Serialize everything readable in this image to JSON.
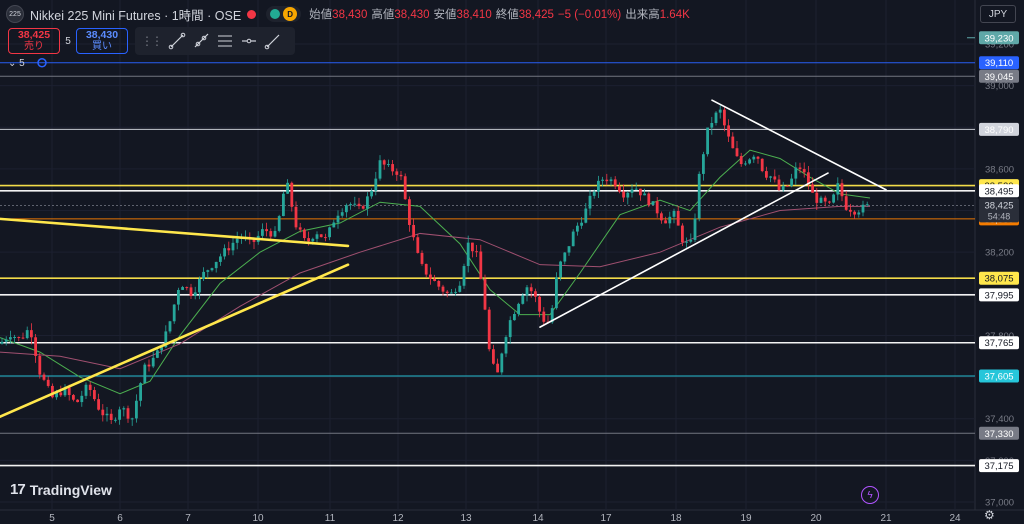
{
  "header": {
    "symbol_logo": "225",
    "title": "Nikkei 225 Mini Futures · 1時間 · OSE",
    "status_badge": "D",
    "ohlc": [
      {
        "label": "始値",
        "value": "38,430"
      },
      {
        "label": "高値",
        "value": "38,430"
      },
      {
        "label": "安値",
        "value": "38,410"
      },
      {
        "label": "終値",
        "value": "38,425"
      },
      {
        "label": "",
        "value": "−5 (−0.01%)"
      },
      {
        "label": "出来高",
        "value": "1.64K"
      }
    ]
  },
  "trade": {
    "sell_price": "38,425",
    "sell_label": "売り",
    "spread": "5",
    "buy_price": "38,430",
    "buy_label": "買い"
  },
  "collapse_label": "5",
  "currency": "JPY",
  "watermark": "TradingView",
  "colors": {
    "background": "#131722",
    "up": "#26a69a",
    "down": "#f23645",
    "ma_fast": "#4caf50",
    "ma_slow": "#a05070",
    "trend_yellow": "#ffe74c"
  },
  "chart_data": {
    "type": "candlestick",
    "ylim": [
      37000,
      39300
    ],
    "x_tick_labels": [
      "5",
      "6",
      "7",
      "10",
      "11",
      "12",
      "13",
      "14",
      "17",
      "18",
      "19",
      "20",
      "21",
      "24"
    ],
    "y_tick_labels": [
      39200,
      39000,
      38800,
      38600,
      38400,
      38200,
      38000,
      37800,
      37600,
      37400,
      37200,
      37000
    ],
    "last_price": 38425,
    "countdown": "54:48",
    "horizontal_levels": [
      {
        "value": 39230,
        "label": "39,230",
        "color": "#5fa8a8",
        "style": "partial"
      },
      {
        "value": 39110,
        "label": "39,110",
        "color": "#2962ff"
      },
      {
        "value": 39045,
        "label": "39,045",
        "color": "#787b86"
      },
      {
        "value": 38790,
        "label": "38,790",
        "color": "#d1d4dc"
      },
      {
        "value": 38520,
        "label": "38,520",
        "color": "#ffe74c"
      },
      {
        "value": 38495,
        "label": "38,495",
        "color": "#ffffff"
      },
      {
        "value": 38360,
        "label": "38,360",
        "color": "#f57c00"
      },
      {
        "value": 38075,
        "label": "38,075",
        "color": "#ffe74c"
      },
      {
        "value": 37995,
        "label": "37,995",
        "color": "#ffffff"
      },
      {
        "value": 37765,
        "label": "37,765",
        "color": "#ffffff"
      },
      {
        "value": 37605,
        "label": "37,605",
        "color": "#26c6da"
      },
      {
        "value": 37330,
        "label": "37,330",
        "color": "#787b86"
      },
      {
        "value": 37175,
        "label": "37,175",
        "color": "#ffffff"
      }
    ],
    "close_path": [
      [
        0,
        37760
      ],
      [
        10,
        37810
      ],
      [
        20,
        37780
      ],
      [
        30,
        37840
      ],
      [
        40,
        37620
      ],
      [
        52,
        37500
      ],
      [
        64,
        37540
      ],
      [
        76,
        37470
      ],
      [
        88,
        37560
      ],
      [
        100,
        37440
      ],
      [
        112,
        37380
      ],
      [
        120,
        37460
      ],
      [
        132,
        37400
      ],
      [
        144,
        37640
      ],
      [
        156,
        37700
      ],
      [
        168,
        37830
      ],
      [
        180,
        38060
      ],
      [
        192,
        38000
      ],
      [
        204,
        38100
      ],
      [
        216,
        38160
      ],
      [
        228,
        38220
      ],
      [
        240,
        38280
      ],
      [
        252,
        38240
      ],
      [
        264,
        38310
      ],
      [
        276,
        38280
      ],
      [
        286,
        38550
      ],
      [
        296,
        38330
      ],
      [
        306,
        38240
      ],
      [
        316,
        38300
      ],
      [
        326,
        38260
      ],
      [
        336,
        38380
      ],
      [
        348,
        38440
      ],
      [
        360,
        38400
      ],
      [
        370,
        38480
      ],
      [
        380,
        38630
      ],
      [
        390,
        38600
      ],
      [
        400,
        38580
      ],
      [
        410,
        38330
      ],
      [
        420,
        38140
      ],
      [
        430,
        38080
      ],
      [
        440,
        38030
      ],
      [
        450,
        37990
      ],
      [
        460,
        38060
      ],
      [
        468,
        38240
      ],
      [
        476,
        38200
      ],
      [
        484,
        37980
      ],
      [
        490,
        37690
      ],
      [
        497,
        37600
      ],
      [
        504,
        37780
      ],
      [
        510,
        37870
      ],
      [
        518,
        37960
      ],
      [
        526,
        38040
      ],
      [
        534,
        38000
      ],
      [
        542,
        37880
      ],
      [
        550,
        37860
      ],
      [
        558,
        38120
      ],
      [
        566,
        38200
      ],
      [
        574,
        38300
      ],
      [
        584,
        38380
      ],
      [
        594,
        38500
      ],
      [
        604,
        38560
      ],
      [
        614,
        38540
      ],
      [
        624,
        38480
      ],
      [
        634,
        38520
      ],
      [
        644,
        38470
      ],
      [
        654,
        38420
      ],
      [
        664,
        38350
      ],
      [
        674,
        38380
      ],
      [
        684,
        38240
      ],
      [
        692,
        38240
      ],
      [
        700,
        38600
      ],
      [
        708,
        38790
      ],
      [
        714,
        38850
      ],
      [
        720,
        38880
      ],
      [
        726,
        38780
      ],
      [
        732,
        38700
      ],
      [
        740,
        38620
      ],
      [
        748,
        38650
      ],
      [
        756,
        38680
      ],
      [
        764,
        38580
      ],
      [
        772,
        38560
      ],
      [
        780,
        38490
      ],
      [
        790,
        38530
      ],
      [
        798,
        38620
      ],
      [
        806,
        38560
      ],
      [
        814,
        38460
      ],
      [
        822,
        38440
      ],
      [
        830,
        38420
      ],
      [
        838,
        38520
      ],
      [
        846,
        38420
      ],
      [
        854,
        38400
      ],
      [
        862,
        38410
      ],
      [
        870,
        38425
      ]
    ],
    "moving_averages": [
      {
        "name": "MA fast",
        "color": "#4caf50",
        "points": [
          [
            0,
            37790
          ],
          [
            40,
            37720
          ],
          [
            80,
            37600
          ],
          [
            120,
            37520
          ],
          [
            150,
            37580
          ],
          [
            180,
            37800
          ],
          [
            220,
            38050
          ],
          [
            260,
            38200
          ],
          [
            300,
            38300
          ],
          [
            340,
            38340
          ],
          [
            380,
            38440
          ],
          [
            420,
            38420
          ],
          [
            460,
            38240
          ],
          [
            490,
            38020
          ],
          [
            520,
            37900
          ],
          [
            550,
            37900
          ],
          [
            580,
            38100
          ],
          [
            620,
            38380
          ],
          [
            660,
            38450
          ],
          [
            690,
            38400
          ],
          [
            720,
            38560
          ],
          [
            750,
            38690
          ],
          [
            780,
            38650
          ],
          [
            810,
            38560
          ],
          [
            840,
            38480
          ],
          [
            870,
            38460
          ]
        ]
      },
      {
        "name": "MA slow",
        "color": "#a05070",
        "points": [
          [
            0,
            37720
          ],
          [
            60,
            37700
          ],
          [
            120,
            37640
          ],
          [
            180,
            37760
          ],
          [
            240,
            37940
          ],
          [
            300,
            38100
          ],
          [
            360,
            38200
          ],
          [
            420,
            38290
          ],
          [
            480,
            38260
          ],
          [
            540,
            38140
          ],
          [
            600,
            38130
          ],
          [
            660,
            38200
          ],
          [
            720,
            38320
          ],
          [
            780,
            38400
          ],
          [
            840,
            38420
          ],
          [
            870,
            38420
          ]
        ]
      }
    ],
    "trendlines": [
      {
        "color": "#ffe74c",
        "from": [
          0,
          38360
        ],
        "to": [
          348,
          38230
        ]
      },
      {
        "color": "#ffe74c",
        "from": [
          0,
          37410
        ],
        "to": [
          348,
          38140
        ]
      },
      {
        "color": "#ffffff",
        "from": [
          540,
          37840
        ],
        "to": [
          828,
          38580
        ]
      },
      {
        "color": "#ffffff",
        "from": [
          712,
          38930
        ],
        "to": [
          886,
          38500
        ]
      }
    ]
  }
}
